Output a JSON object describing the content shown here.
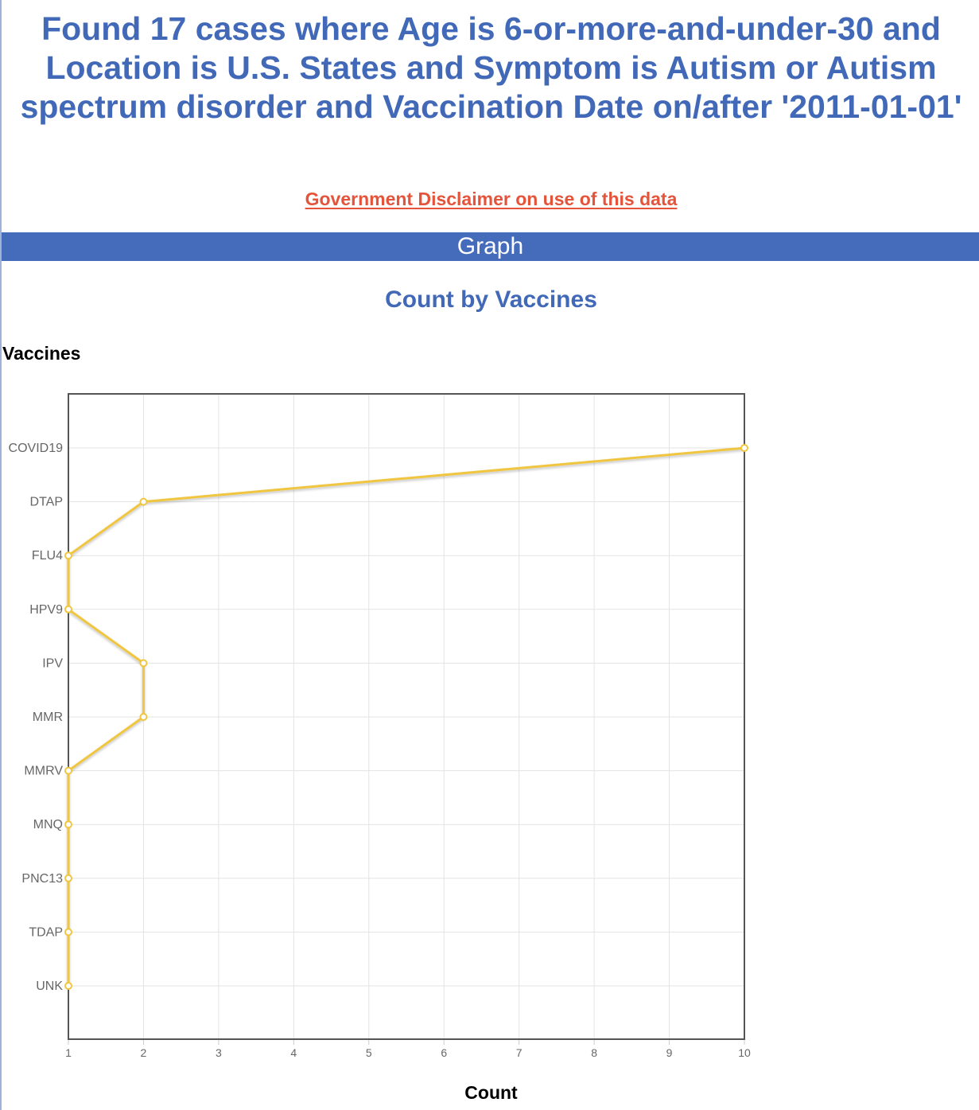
{
  "page": {
    "title": "Found 17 cases where Age is 6-or-more-and-under-30 and Location is U.S. States and Symptom is Autism or Autism spectrum disorder and Vaccination Date on/after '2011-01-01'",
    "disclaimer_link": "Government Disclaimer on use of this data",
    "section_header": "Graph"
  },
  "chart_data": {
    "type": "line",
    "title": "Count by Vaccines",
    "xlabel": "Count",
    "ylabel": "Vaccines",
    "orientation": "horizontal",
    "categories": [
      "COVID19",
      "DTAP",
      "FLU4",
      "HPV9",
      "IPV",
      "MMR",
      "MMRV",
      "MNQ",
      "PNC13",
      "TDAP",
      "UNK"
    ],
    "values": [
      10,
      2,
      1,
      1,
      2,
      2,
      1,
      1,
      1,
      1,
      1
    ],
    "xlim": [
      1,
      10
    ],
    "xticks": [
      1,
      2,
      3,
      4,
      5,
      6,
      7,
      8,
      9,
      10
    ],
    "grid": true,
    "line_color": "#f0c640",
    "title_color": "#4169b8"
  }
}
